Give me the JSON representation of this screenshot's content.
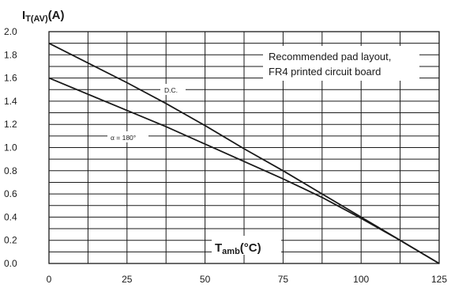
{
  "chart_data": {
    "type": "line",
    "ylabel": {
      "main": "I",
      "sub": "T(AV)",
      "unit": "(A)"
    },
    "xlabel": {
      "main": "T",
      "sub": "amb",
      "unit": "(°C)"
    },
    "xlim": [
      0,
      125
    ],
    "ylim": [
      0,
      2.0
    ],
    "x_ticks": [
      "0",
      "25",
      "50",
      "75",
      "100",
      "125"
    ],
    "y_ticks": [
      "0.0",
      "0.2",
      "0.4",
      "0.6",
      "0.8",
      "1.0",
      "1.2",
      "1.4",
      "1.6",
      "1.8",
      "2.0"
    ],
    "grid": true,
    "annotation_lines": [
      "Recommended pad layout,",
      "FR4 printed circuit board"
    ],
    "series": [
      {
        "name": "D.C.",
        "x": [
          0,
          25,
          37.5,
          50,
          62.5,
          75,
          87.5,
          100,
          112.5,
          125
        ],
        "y": [
          1.9,
          1.56,
          1.38,
          1.19,
          0.99,
          0.8,
          0.6,
          0.4,
          0.2,
          0.0
        ]
      },
      {
        "name": "α = 180°",
        "x": [
          0,
          25,
          37.5,
          50,
          62.5,
          75,
          87.5,
          100,
          112.5,
          125
        ],
        "y": [
          1.6,
          1.32,
          1.18,
          1.03,
          0.88,
          0.73,
          0.57,
          0.39,
          0.2,
          0.0
        ]
      }
    ]
  }
}
